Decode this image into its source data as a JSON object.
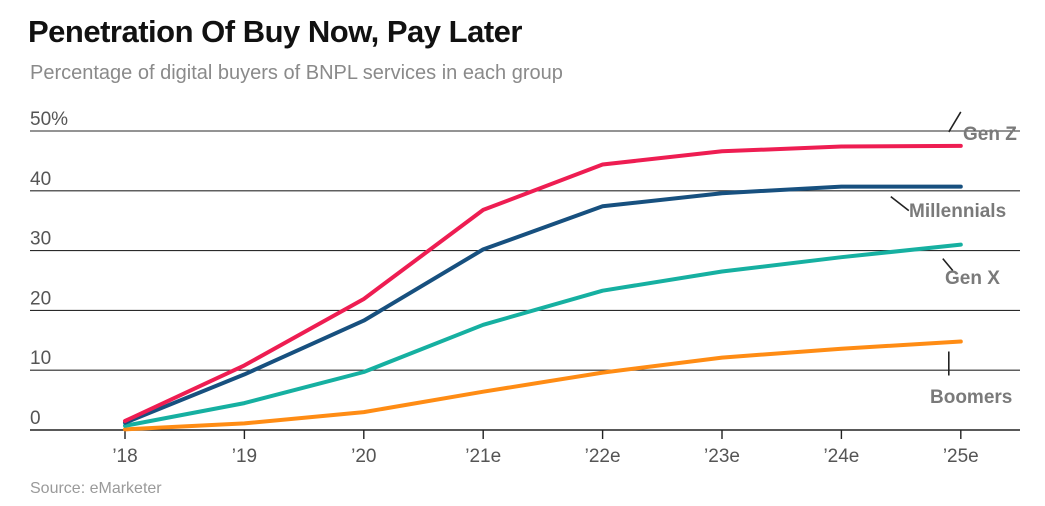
{
  "chart_data": {
    "type": "line",
    "title": "Penetration Of Buy Now, Pay Later",
    "subtitle": "Percentage of digital buyers of BNPL services in each group",
    "source": "Source: eMarketer",
    "categories": [
      "’18",
      "’19",
      "’20",
      "’21e",
      "’22e",
      "’23e",
      "’24e",
      "’25e"
    ],
    "ylim": [
      0,
      50
    ],
    "yticks": [
      0,
      10,
      20,
      30,
      40,
      50
    ],
    "ytick_labels": [
      "0",
      "10",
      "20",
      "30",
      "40",
      "50%"
    ],
    "grid": true,
    "series": [
      {
        "name": "Gen Z",
        "color": "#ee1d52",
        "values": [
          1.5,
          10.8,
          21.9,
          36.8,
          44.4,
          46.6,
          47.4,
          47.5
        ]
      },
      {
        "name": "Millennials",
        "color": "#17507f",
        "values": [
          1.2,
          9.3,
          18.3,
          30.2,
          37.4,
          39.6,
          40.7,
          40.7
        ]
      },
      {
        "name": "Gen X",
        "color": "#16b0a1",
        "values": [
          0.7,
          4.5,
          9.7,
          17.6,
          23.3,
          26.5,
          28.9,
          31.0
        ]
      },
      {
        "name": "Boomers",
        "color": "#ff8c14",
        "values": [
          0.1,
          1.1,
          3.0,
          6.4,
          9.6,
          12.1,
          13.6,
          14.8
        ]
      }
    ]
  }
}
